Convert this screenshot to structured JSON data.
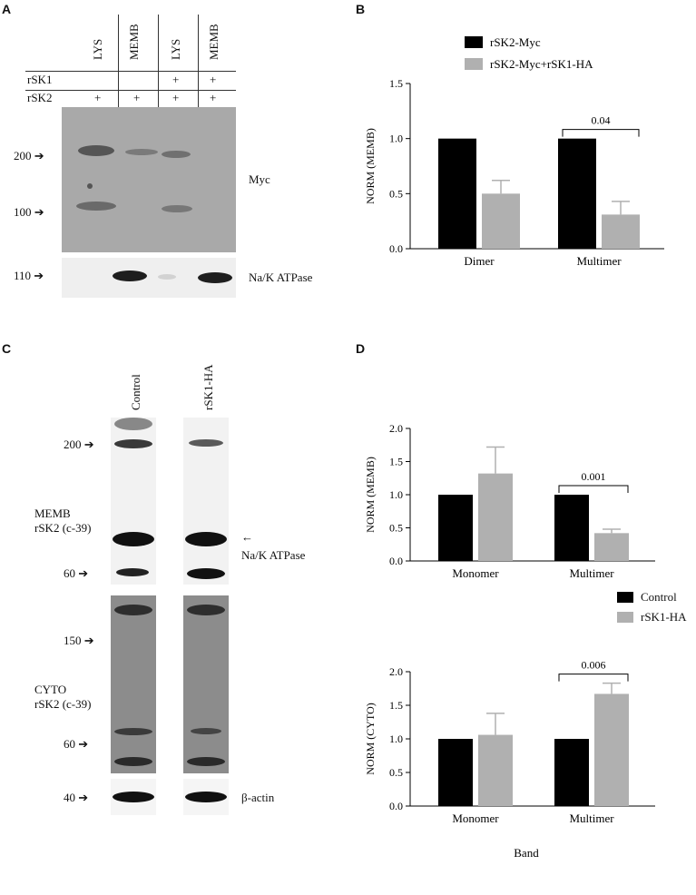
{
  "panels": {
    "a": "A",
    "b": "B",
    "c": "C",
    "d": "D"
  },
  "panel_a": {
    "lane_labels": [
      "LYS",
      "MEMB",
      "LYS",
      "MEMB"
    ],
    "row_labels": [
      "rSK1",
      "rSK2"
    ],
    "rsk1_marks": [
      "",
      "",
      "+",
      "+"
    ],
    "rsk2_marks": [
      "+",
      "+",
      "+",
      "+"
    ],
    "markers": [
      "200",
      "100",
      "110"
    ],
    "blot_labels": [
      "Myc",
      "Na/K ATPase"
    ]
  },
  "panel_c": {
    "lane_labels": [
      "Control",
      "rSK1-HA"
    ],
    "memb_markers": [
      "200",
      "60"
    ],
    "cyto_markers": [
      "150",
      "60"
    ],
    "actin_marker": "40",
    "memb_label_1": "MEMB",
    "memb_label_2": "rSK2 (c-39)",
    "cyto_label_1": "CYTO",
    "cyto_label_2": "rSK2 (c-39)",
    "atpase_label": "Na/K ATPase",
    "actin_label": "β-actin"
  },
  "chart_data": [
    {
      "id": "B",
      "type": "bar",
      "categories": [
        "Dimer",
        "Multimer"
      ],
      "series": [
        {
          "name": "rSK2-Myc",
          "values": [
            1.0,
            1.0
          ],
          "errors": [
            0,
            0
          ],
          "color": "#000000"
        },
        {
          "name": "rSK2-Myc+rSK1-HA",
          "values": [
            0.5,
            0.31
          ],
          "errors": [
            0.12,
            0.12
          ],
          "color": "#b0b0b0"
        }
      ],
      "ylabel": "NORM (MEMB)",
      "ylim": [
        0,
        1.5
      ],
      "yticks": [
        "0.0",
        "0.5",
        "1.0",
        "1.5"
      ],
      "annotation": "0.04",
      "legend": "top"
    },
    {
      "id": "D-top",
      "type": "bar",
      "categories": [
        "Monomer",
        "Multimer"
      ],
      "series": [
        {
          "name": "Control",
          "values": [
            1.0,
            1.0
          ],
          "errors": [
            0,
            0
          ],
          "color": "#000000"
        },
        {
          "name": "rSK1-HA",
          "values": [
            1.32,
            0.42
          ],
          "errors": [
            0.4,
            0.06
          ],
          "color": "#b0b0b0"
        }
      ],
      "ylabel": "NORM (MEMB)",
      "ylim": [
        0,
        2.0
      ],
      "yticks": [
        "0.0",
        "0.5",
        "1.0",
        "1.5",
        "2.0"
      ],
      "annotation": "0.001"
    },
    {
      "id": "D-bottom",
      "type": "bar",
      "categories": [
        "Monomer",
        "Multimer"
      ],
      "series": [
        {
          "name": "Control",
          "values": [
            1.0,
            1.0
          ],
          "errors": [
            0,
            0
          ],
          "color": "#000000"
        },
        {
          "name": "rSK1-HA",
          "values": [
            1.06,
            1.67
          ],
          "errors": [
            0.32,
            0.16
          ],
          "color": "#b0b0b0"
        }
      ],
      "ylabel": "NORM (CYTO)",
      "xlabel": "Band",
      "ylim": [
        0,
        2.0
      ],
      "yticks": [
        "0.0",
        "0.5",
        "1.0",
        "1.5",
        "2.0"
      ],
      "annotation": "0.006"
    }
  ],
  "legend_d": [
    "Control",
    "rSK1-HA"
  ]
}
